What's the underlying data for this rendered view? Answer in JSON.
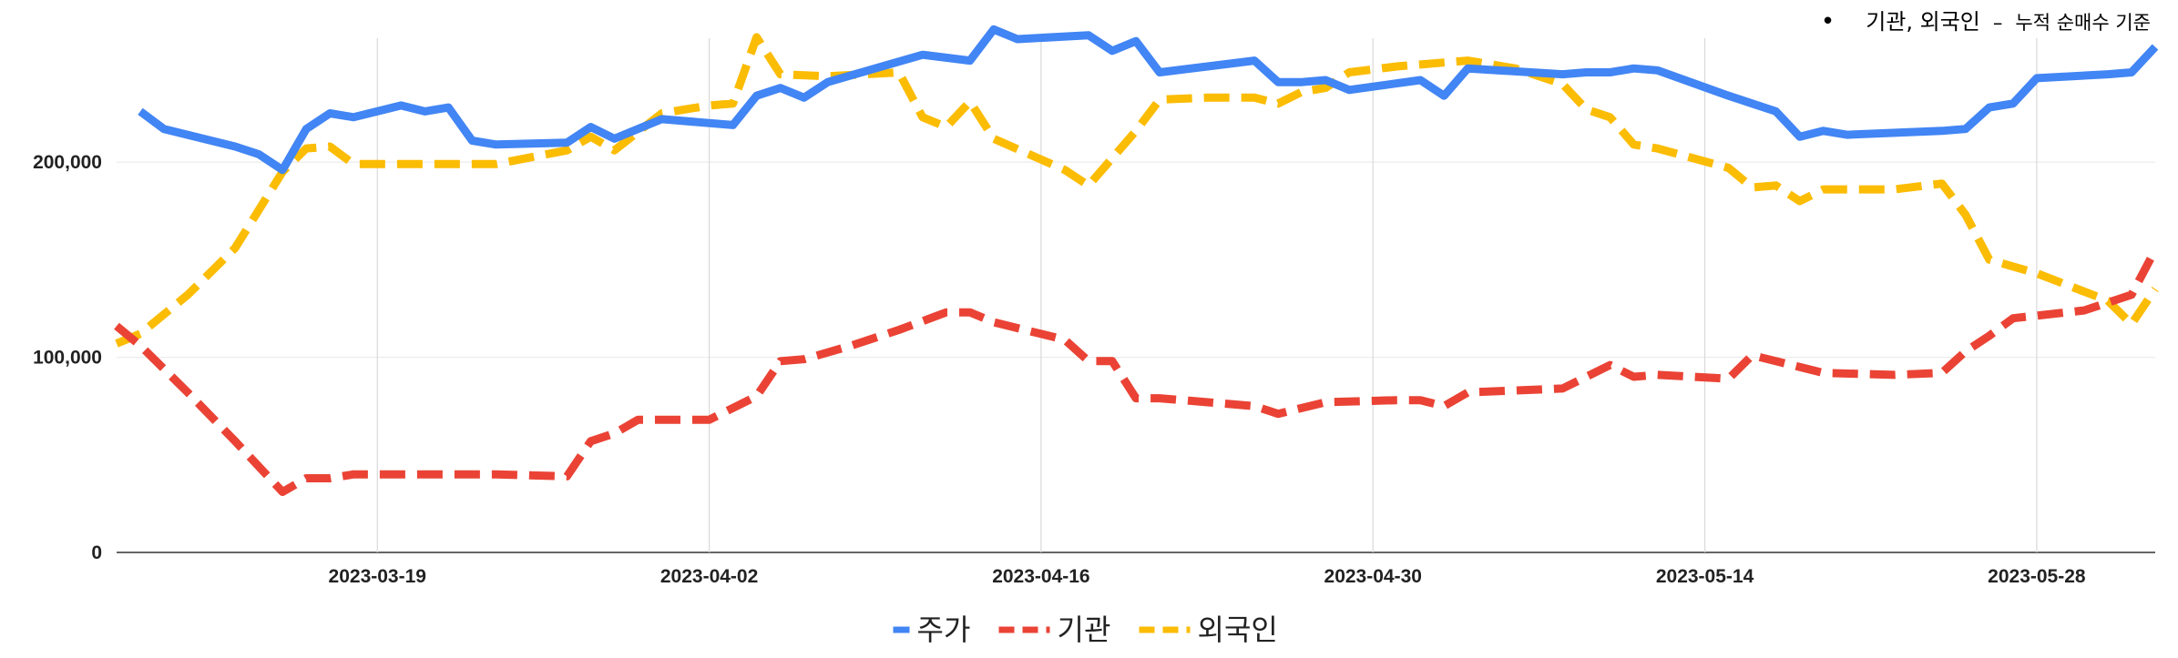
{
  "note": {
    "bullet": "•",
    "main": "기관, 외국인",
    "dash": "–",
    "sub": "누적 순매수 기준"
  },
  "chart_data": {
    "type": "line",
    "xlim": [
      "2023-03-08",
      "2023-06-02"
    ],
    "ylim": [
      0,
      270000
    ],
    "yticks": [
      0,
      100000,
      200000
    ],
    "ytick_labels": [
      "0",
      "100,000",
      "200,000"
    ],
    "xticks": [
      "2023-03-19",
      "2023-04-02",
      "2023-04-16",
      "2023-04-30",
      "2023-05-14",
      "2023-05-28"
    ],
    "xtick_labels": [
      "2023-03-19",
      "2023-04-02",
      "2023-04-16",
      "2023-04-30",
      "2023-05-14",
      "2023-05-28"
    ],
    "grid": true,
    "legend_position": "bottom",
    "series": [
      {
        "name": "주가",
        "color": "#4285F4",
        "style": "solid",
        "points": [
          [
            "2023-03-09",
            226000
          ],
          [
            "2023-03-10",
            217000
          ],
          [
            "2023-03-13",
            208000
          ],
          [
            "2023-03-14",
            204000
          ],
          [
            "2023-03-15",
            196000
          ],
          [
            "2023-03-16",
            217000
          ],
          [
            "2023-03-17",
            225000
          ],
          [
            "2023-03-18",
            223000
          ],
          [
            "2023-03-20",
            229000
          ],
          [
            "2023-03-21",
            226000
          ],
          [
            "2023-03-22",
            228000
          ],
          [
            "2023-03-23",
            211000
          ],
          [
            "2023-03-24",
            209000
          ],
          [
            "2023-03-27",
            210000
          ],
          [
            "2023-03-28",
            218000
          ],
          [
            "2023-03-29",
            212000
          ],
          [
            "2023-03-31",
            222000
          ],
          [
            "2023-04-03",
            219000
          ],
          [
            "2023-04-04",
            234000
          ],
          [
            "2023-04-05",
            238000
          ],
          [
            "2023-04-06",
            233000
          ],
          [
            "2023-04-07",
            241000
          ],
          [
            "2023-04-11",
            255000
          ],
          [
            "2023-04-13",
            252000
          ],
          [
            "2023-04-14",
            268000
          ],
          [
            "2023-04-15",
            263000
          ],
          [
            "2023-04-18",
            265000
          ],
          [
            "2023-04-19",
            257000
          ],
          [
            "2023-04-20",
            262000
          ],
          [
            "2023-04-21",
            246000
          ],
          [
            "2023-04-25",
            252000
          ],
          [
            "2023-04-26",
            241000
          ],
          [
            "2023-04-27",
            241000
          ],
          [
            "2023-04-28",
            242000
          ],
          [
            "2023-04-29",
            237000
          ],
          [
            "2023-05-02",
            242000
          ],
          [
            "2023-05-03",
            234000
          ],
          [
            "2023-05-04",
            248000
          ],
          [
            "2023-05-08",
            245000
          ],
          [
            "2023-05-09",
            246000
          ],
          [
            "2023-05-10",
            246000
          ],
          [
            "2023-05-11",
            248000
          ],
          [
            "2023-05-12",
            247000
          ],
          [
            "2023-05-15",
            234000
          ],
          [
            "2023-05-16",
            230000
          ],
          [
            "2023-05-17",
            226000
          ],
          [
            "2023-05-18",
            213000
          ],
          [
            "2023-05-19",
            216000
          ],
          [
            "2023-05-20",
            214000
          ],
          [
            "2023-05-24",
            216000
          ],
          [
            "2023-05-25",
            217000
          ],
          [
            "2023-05-26",
            228000
          ],
          [
            "2023-05-27",
            230000
          ],
          [
            "2023-05-28",
            243000
          ],
          [
            "2023-05-31",
            245000
          ],
          [
            "2023-06-01",
            246000
          ],
          [
            "2023-06-02",
            259000
          ]
        ]
      },
      {
        "name": "기관",
        "color": "#EA4335",
        "style": "dashed",
        "points": [
          [
            "2023-03-08",
            116000
          ],
          [
            "2023-03-09",
            106000
          ],
          [
            "2023-03-11",
            82000
          ],
          [
            "2023-03-13",
            57000
          ],
          [
            "2023-03-15",
            31000
          ],
          [
            "2023-03-16",
            38000
          ],
          [
            "2023-03-17",
            38000
          ],
          [
            "2023-03-18",
            40000
          ],
          [
            "2023-03-21",
            40000
          ],
          [
            "2023-03-24",
            40000
          ],
          [
            "2023-03-27",
            39000
          ],
          [
            "2023-03-28",
            57000
          ],
          [
            "2023-03-29",
            61000
          ],
          [
            "2023-03-30",
            68000
          ],
          [
            "2023-04-02",
            68000
          ],
          [
            "2023-04-04",
            80000
          ],
          [
            "2023-04-05",
            98000
          ],
          [
            "2023-04-06",
            99000
          ],
          [
            "2023-04-08",
            106000
          ],
          [
            "2023-04-10",
            114000
          ],
          [
            "2023-04-12",
            123000
          ],
          [
            "2023-04-13",
            123000
          ],
          [
            "2023-04-14",
            118000
          ],
          [
            "2023-04-17",
            109000
          ],
          [
            "2023-04-18",
            98000
          ],
          [
            "2023-04-19",
            98000
          ],
          [
            "2023-04-20",
            79000
          ],
          [
            "2023-04-21",
            79000
          ],
          [
            "2023-04-25",
            75000
          ],
          [
            "2023-04-26",
            71000
          ],
          [
            "2023-04-28",
            77000
          ],
          [
            "2023-05-01",
            78000
          ],
          [
            "2023-05-02",
            78000
          ],
          [
            "2023-05-03",
            75000
          ],
          [
            "2023-05-04",
            82000
          ],
          [
            "2023-05-08",
            84000
          ],
          [
            "2023-05-10",
            96000
          ],
          [
            "2023-05-11",
            90000
          ],
          [
            "2023-05-12",
            91000
          ],
          [
            "2023-05-15",
            89000
          ],
          [
            "2023-05-16",
            101000
          ],
          [
            "2023-05-18",
            95000
          ],
          [
            "2023-05-19",
            92000
          ],
          [
            "2023-05-22",
            91000
          ],
          [
            "2023-05-24",
            92000
          ],
          [
            "2023-05-25",
            103000
          ],
          [
            "2023-05-26",
            111000
          ],
          [
            "2023-05-27",
            120000
          ],
          [
            "2023-05-30",
            124000
          ],
          [
            "2023-05-31",
            128000
          ],
          [
            "2023-06-01",
            132000
          ],
          [
            "2023-06-02",
            155000
          ]
        ]
      },
      {
        "name": "외국인",
        "color": "#FBBC04",
        "style": "dashed",
        "points": [
          [
            "2023-03-08",
            107000
          ],
          [
            "2023-03-09",
            112000
          ],
          [
            "2023-03-11",
            132000
          ],
          [
            "2023-03-13",
            156000
          ],
          [
            "2023-03-15",
            195000
          ],
          [
            "2023-03-16",
            207000
          ],
          [
            "2023-03-17",
            208000
          ],
          [
            "2023-03-18",
            199000
          ],
          [
            "2023-03-22",
            199000
          ],
          [
            "2023-03-24",
            199000
          ],
          [
            "2023-03-27",
            206000
          ],
          [
            "2023-03-28",
            213000
          ],
          [
            "2023-03-29",
            206000
          ],
          [
            "2023-03-31",
            225000
          ],
          [
            "2023-04-02",
            229000
          ],
          [
            "2023-04-03",
            230000
          ],
          [
            "2023-04-04",
            264000
          ],
          [
            "2023-04-05",
            245000
          ],
          [
            "2023-04-07",
            244000
          ],
          [
            "2023-04-10",
            246000
          ],
          [
            "2023-04-11",
            223000
          ],
          [
            "2023-04-12",
            218000
          ],
          [
            "2023-04-13",
            231000
          ],
          [
            "2023-04-14",
            212000
          ],
          [
            "2023-04-17",
            196000
          ],
          [
            "2023-04-18",
            188000
          ],
          [
            "2023-04-20",
            216000
          ],
          [
            "2023-04-21",
            232000
          ],
          [
            "2023-04-23",
            233000
          ],
          [
            "2023-04-25",
            233000
          ],
          [
            "2023-04-26",
            230000
          ],
          [
            "2023-04-27",
            236000
          ],
          [
            "2023-04-28",
            238000
          ],
          [
            "2023-04-29",
            246000
          ],
          [
            "2023-05-01",
            249000
          ],
          [
            "2023-05-03",
            251000
          ],
          [
            "2023-05-04",
            252000
          ],
          [
            "2023-05-06",
            248000
          ],
          [
            "2023-05-08",
            240000
          ],
          [
            "2023-05-09",
            227000
          ],
          [
            "2023-05-10",
            223000
          ],
          [
            "2023-05-11",
            209000
          ],
          [
            "2023-05-12",
            207000
          ],
          [
            "2023-05-15",
            197000
          ],
          [
            "2023-05-16",
            187000
          ],
          [
            "2023-05-17",
            188000
          ],
          [
            "2023-05-18",
            180000
          ],
          [
            "2023-05-19",
            186000
          ],
          [
            "2023-05-22",
            186000
          ],
          [
            "2023-05-24",
            189000
          ],
          [
            "2023-05-25",
            173000
          ],
          [
            "2023-05-26",
            150000
          ],
          [
            "2023-05-28",
            143000
          ],
          [
            "2023-05-31",
            129000
          ],
          [
            "2023-06-01",
            117000
          ],
          [
            "2023-06-02",
            135000
          ]
        ]
      }
    ]
  }
}
